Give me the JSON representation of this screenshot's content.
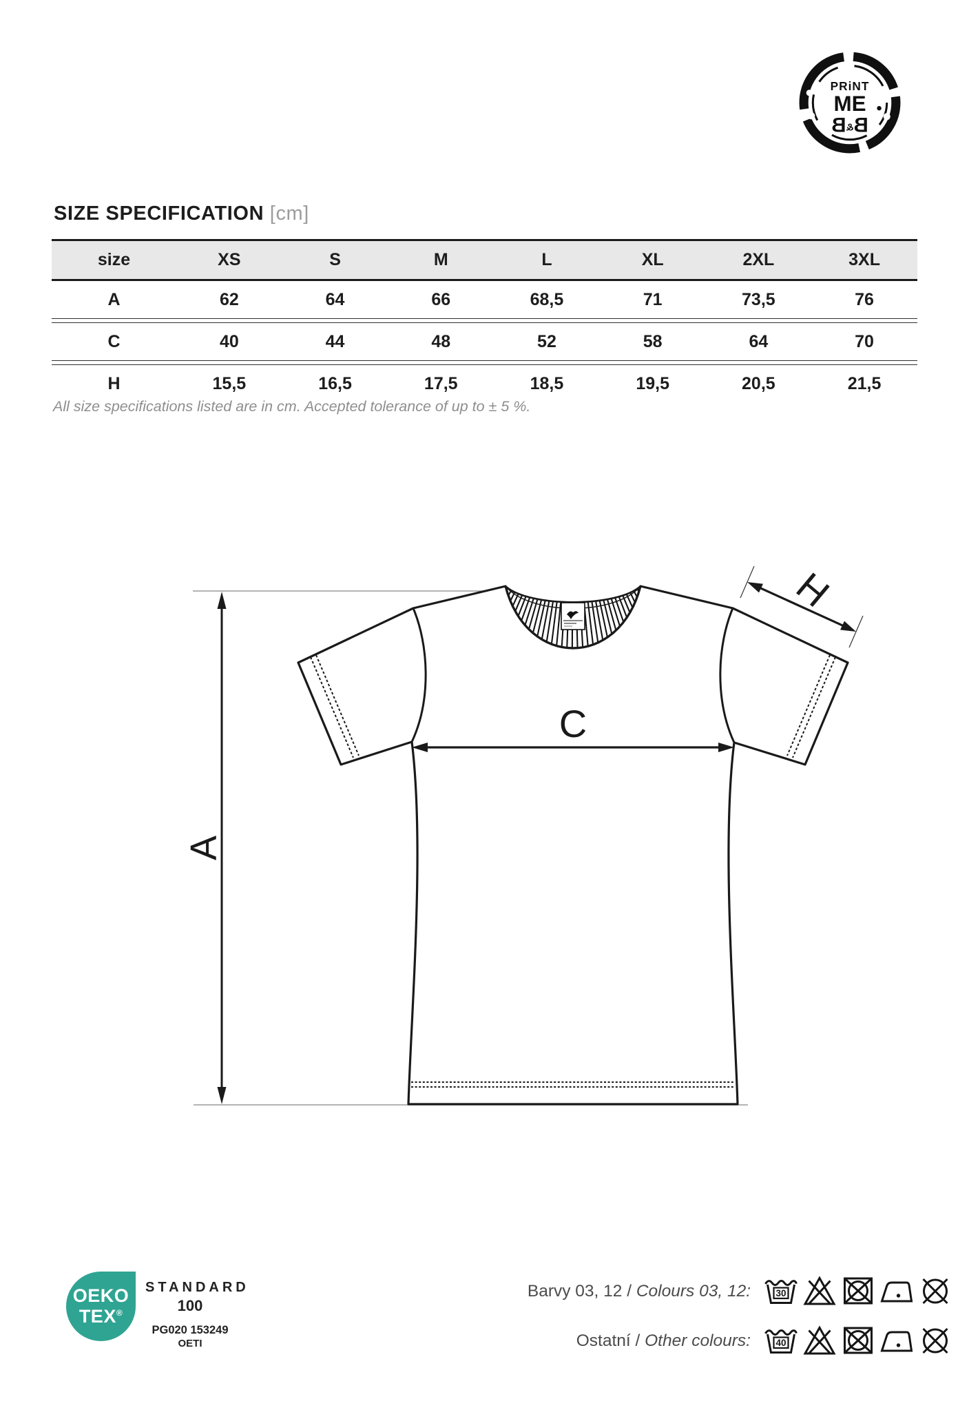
{
  "stamp_logo": {
    "line1": "PRiNT",
    "line2": "ME",
    "line3_left": "B",
    "line3_amp": "&",
    "line3_right": "B"
  },
  "heading": {
    "title": "SIZE SPECIFICATION",
    "unit": "[cm]"
  },
  "size_table": {
    "columns": [
      "size",
      "XS",
      "S",
      "M",
      "L",
      "XL",
      "2XL",
      "3XL"
    ],
    "rows": [
      {
        "label": "A",
        "values": [
          "62",
          "64",
          "66",
          "68,5",
          "71",
          "73,5",
          "76"
        ]
      },
      {
        "label": "C",
        "values": [
          "40",
          "44",
          "48",
          "52",
          "58",
          "64",
          "70"
        ]
      },
      {
        "label": "H",
        "values": [
          "15,5",
          "16,5",
          "17,5",
          "18,5",
          "19,5",
          "20,5",
          "21,5"
        ]
      }
    ],
    "note": "All size specifications listed are in cm. Accepted tolerance of up to ± 5 %."
  },
  "diagram": {
    "labels": {
      "A": "A",
      "C": "C",
      "H": "H"
    }
  },
  "certification": {
    "accent_color": "#2FA492",
    "logo_line1": "OEKO",
    "logo_line2": "TEX",
    "registered": "®",
    "standard": "STANDARD",
    "number": "100",
    "cert_id": "PG020 153249",
    "institute": "OETI"
  },
  "care": {
    "rows": [
      {
        "label_cs": "Barvy 03, 12 / ",
        "label_en": "Colours 03, 12:",
        "wash_temp": "30"
      },
      {
        "label_cs": "Ostatní / ",
        "label_en": "Other colours:",
        "wash_temp": "40"
      }
    ],
    "icons": [
      "wash-tub-icon",
      "do-not-bleach-icon",
      "do-not-tumble-dry-icon",
      "iron-one-dot-icon",
      "do-not-dry-clean-icon"
    ]
  }
}
